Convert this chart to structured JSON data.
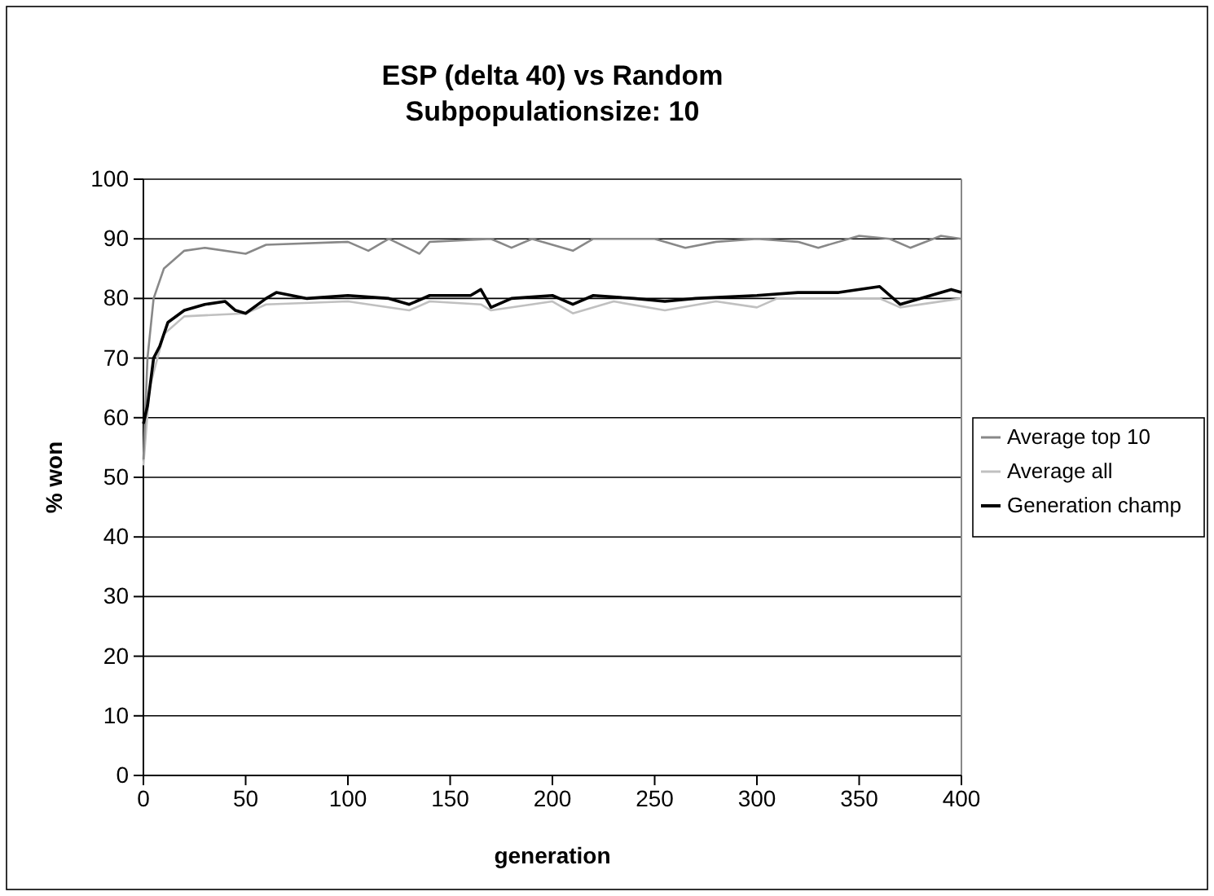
{
  "chart_data": {
    "type": "line",
    "title": "ESP (delta 40) vs Random",
    "subtitle": "Subpopulationsize: 10",
    "xlabel": "generation",
    "ylabel": "% won",
    "xlim": [
      0,
      400
    ],
    "xticks": [
      0,
      50,
      100,
      150,
      200,
      250,
      300,
      350,
      400
    ],
    "ylim": [
      0,
      100
    ],
    "yticks": [
      0,
      10,
      20,
      30,
      40,
      50,
      60,
      70,
      80,
      90,
      100
    ],
    "grid": "y",
    "legend": "right",
    "marker": "none",
    "line_style": "solid",
    "series": [
      {
        "name": "Average top 10",
        "color": "#888888",
        "x": [
          0,
          2,
          5,
          10,
          20,
          30,
          50,
          60,
          100,
          110,
          120,
          135,
          140,
          170,
          180,
          190,
          210,
          220,
          250,
          265,
          280,
          300,
          320,
          330,
          350,
          365,
          375,
          390,
          400
        ],
        "values": [
          53,
          70,
          80,
          85,
          88,
          88.5,
          87.5,
          89,
          89.5,
          88,
          90,
          87.5,
          89.5,
          90,
          88.5,
          90,
          88,
          90,
          90,
          88.5,
          89.5,
          90,
          89.5,
          88.5,
          90.5,
          90,
          88.5,
          90.5,
          90
        ]
      },
      {
        "name": "Average all",
        "color": "#c0c0c0",
        "x": [
          0,
          3,
          10,
          20,
          50,
          60,
          100,
          130,
          140,
          165,
          170,
          200,
          210,
          230,
          255,
          280,
          300,
          310,
          360,
          370,
          400
        ],
        "values": [
          52,
          65,
          74,
          77,
          77.5,
          79,
          79.5,
          78,
          79.5,
          79,
          78,
          79.5,
          77.5,
          79.5,
          78,
          79.5,
          78.5,
          80,
          80,
          78.5,
          80
        ]
      },
      {
        "name": "Generation champ",
        "color": "#000000",
        "x": [
          0,
          2,
          5,
          8,
          12,
          20,
          30,
          40,
          45,
          50,
          60,
          65,
          80,
          100,
          120,
          130,
          140,
          160,
          165,
          170,
          180,
          200,
          210,
          220,
          240,
          255,
          270,
          300,
          320,
          340,
          360,
          370,
          385,
          395,
          400
        ],
        "values": [
          59,
          62,
          70,
          72,
          76,
          78,
          79,
          79.5,
          78,
          77.5,
          80,
          81,
          80,
          80.5,
          80,
          79,
          80.5,
          80.5,
          81.5,
          78.5,
          80,
          80.5,
          79,
          80.5,
          80,
          79.5,
          80,
          80.5,
          81,
          81,
          82,
          79,
          80.5,
          81.5,
          81
        ]
      }
    ]
  }
}
